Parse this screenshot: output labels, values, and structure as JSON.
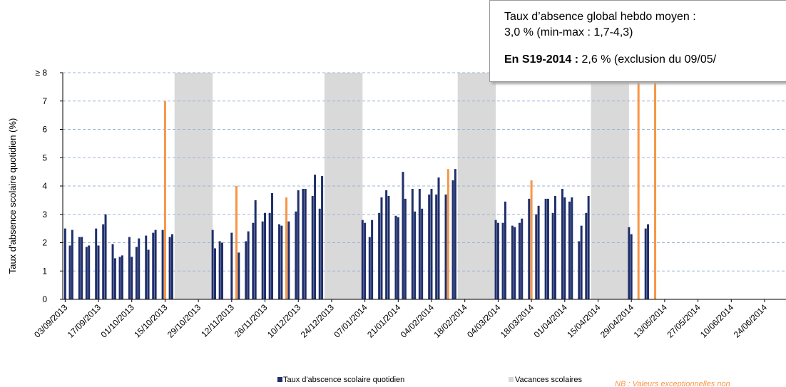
{
  "chart_data": {
    "type": "bar",
    "y_label": "Taux d'absence scolaire quotidien (%)",
    "ylim": [
      0,
      8
    ],
    "yticks": [
      0,
      1,
      2,
      3,
      4,
      5,
      6,
      7,
      {
        "value": 8,
        "label": "≥ 8"
      }
    ],
    "xlim": [
      "02/09/2013",
      "03/07/2014"
    ],
    "xticks": [
      "03/09/2013",
      "17/09/2013",
      "01/10/2013",
      "15/10/2013",
      "29/10/2013",
      "12/11/2013",
      "26/11/2013",
      "10/12/2013",
      "24/12/2013",
      "07/01/2014",
      "21/01/2014",
      "04/02/2014",
      "18/02/2014",
      "04/03/2014",
      "18/03/2014",
      "01/04/2014",
      "15/04/2014",
      "29/04/2014",
      "13/05/2014",
      "27/05/2014",
      "10/06/2014",
      "24/06/2014"
    ],
    "grid": true,
    "series": [
      {
        "name": "Taux d'abscence scolaire quotidien",
        "color": "#1f2f6b",
        "x": [
          "03/09/2013",
          "05/09/2013",
          "06/09/2013",
          "09/09/2013",
          "10/09/2013",
          "12/09/2013",
          "13/09/2013",
          "16/09/2013",
          "17/09/2013",
          "19/09/2013",
          "20/09/2013",
          "23/09/2013",
          "24/09/2013",
          "26/09/2013",
          "27/09/2013",
          "30/09/2013",
          "01/10/2013",
          "03/10/2013",
          "04/10/2013",
          "07/10/2013",
          "08/10/2013",
          "10/10/2013",
          "11/10/2013",
          "14/10/2013",
          "17/10/2013",
          "18/10/2013",
          "04/11/2013",
          "05/11/2013",
          "07/11/2013",
          "08/11/2013",
          "12/11/2013",
          "15/11/2013",
          "18/11/2013",
          "19/11/2013",
          "21/11/2013",
          "22/11/2013",
          "25/11/2013",
          "26/11/2013",
          "28/11/2013",
          "29/11/2013",
          "02/12/2013",
          "03/12/2013",
          "06/12/2013",
          "09/12/2013",
          "10/12/2013",
          "12/12/2013",
          "13/12/2013",
          "16/12/2013",
          "17/12/2013",
          "19/12/2013",
          "20/12/2013",
          "06/01/2014",
          "07/01/2014",
          "09/01/2014",
          "10/01/2014",
          "13/01/2014",
          "14/01/2014",
          "16/01/2014",
          "17/01/2014",
          "20/01/2014",
          "21/01/2014",
          "23/01/2014",
          "24/01/2014",
          "27/01/2014",
          "28/01/2014",
          "30/01/2014",
          "31/01/2014",
          "03/02/2014",
          "04/02/2014",
          "06/02/2014",
          "07/02/2014",
          "10/02/2014",
          "13/02/2014",
          "14/02/2014",
          "03/03/2014",
          "04/03/2014",
          "06/03/2014",
          "07/03/2014",
          "10/03/2014",
          "11/03/2014",
          "13/03/2014",
          "14/03/2014",
          "17/03/2014",
          "20/03/2014",
          "21/03/2014",
          "24/03/2014",
          "25/03/2014",
          "27/03/2014",
          "28/03/2014",
          "31/03/2014",
          "01/04/2014",
          "03/04/2014",
          "04/04/2014",
          "07/04/2014",
          "08/04/2014",
          "10/04/2014",
          "11/04/2014",
          "28/04/2014",
          "29/04/2014",
          "05/05/2014",
          "06/05/2014"
        ],
        "values": [
          2.5,
          1.9,
          2.45,
          2.2,
          2.2,
          1.85,
          1.9,
          2.5,
          1.9,
          2.65,
          3.0,
          1.95,
          1.45,
          1.5,
          1.55,
          2.2,
          1.5,
          1.85,
          2.15,
          2.25,
          1.75,
          2.35,
          2.45,
          2.45,
          2.2,
          2.3,
          2.45,
          1.8,
          2.05,
          2.0,
          2.35,
          1.65,
          2.05,
          2.4,
          2.7,
          3.5,
          2.75,
          3.05,
          3.05,
          3.75,
          2.65,
          2.6,
          2.75,
          3.1,
          3.85,
          3.9,
          3.9,
          3.65,
          4.4,
          3.2,
          4.35,
          2.8,
          2.7,
          2.2,
          2.8,
          3.05,
          3.6,
          3.85,
          3.65,
          2.95,
          2.9,
          4.5,
          3.55,
          3.9,
          3.1,
          3.9,
          3.2,
          3.7,
          3.9,
          3.7,
          4.3,
          3.7,
          4.2,
          4.6,
          2.8,
          2.7,
          2.7,
          3.45,
          2.6,
          2.55,
          2.7,
          2.85,
          3.55,
          3.0,
          3.3,
          3.55,
          3.55,
          3.05,
          3.65,
          3.9,
          3.6,
          3.45,
          3.6,
          2.05,
          2.6,
          3.05,
          3.65,
          2.55,
          2.3,
          2.5,
          2.65
        ]
      },
      {
        "name": "Vacances scolaires",
        "color": "#d9d9d9",
        "ranges": [
          [
            "19/10/2013",
            "03/11/2013"
          ],
          [
            "21/12/2013",
            "05/01/2014"
          ],
          [
            "15/02/2014",
            "02/03/2014"
          ],
          [
            "12/04/2014",
            "27/04/2014"
          ]
        ]
      }
    ],
    "exceptional": {
      "color": "#f79646",
      "x": [
        "15/10/2013",
        "14/11/2013",
        "05/12/2013",
        "11/02/2014",
        "18/03/2014",
        "02/05/2014",
        "09/05/2014"
      ],
      "values": [
        7.0,
        4.0,
        3.6,
        4.6,
        4.2,
        8,
        8
      ]
    },
    "note": "NB : Valeurs exceptionnelles non",
    "info_box": {
      "line1": "Taux d’absence global hebdo moyen :",
      "line2": "3,0 % (min-max : 1,7-4,3)",
      "line3_bold": "En S19-2014 :",
      "line3": " 2,6 % (exclusion du 09/05/"
    }
  }
}
